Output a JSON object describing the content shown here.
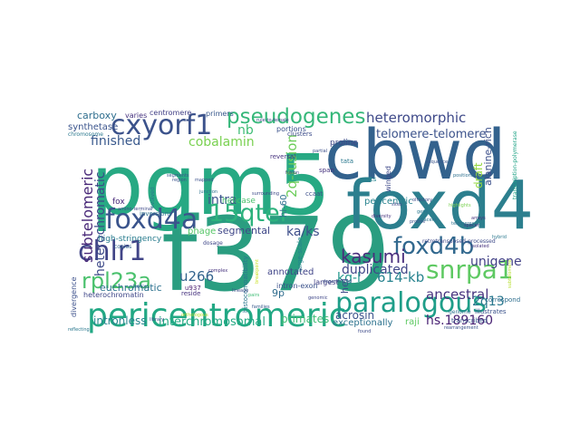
{
  "word_cloud": {
    "words": [
      {
        "text": "f379",
        "color": "#2a9d80"
      },
      {
        "text": "pgm5",
        "color": "#27a983"
      },
      {
        "text": "cbwd",
        "color": "#33628d"
      },
      {
        "text": "foxd4",
        "color": "#2c7f8e"
      },
      {
        "text": "pericentromeric",
        "color": "#22a884"
      },
      {
        "text": "paralogous",
        "color": "#1f9e89"
      },
      {
        "text": "foxd4a",
        "color": "#3a548c"
      },
      {
        "text": "cxyorf1",
        "color": "#3b528b"
      },
      {
        "text": "pseudogenes",
        "color": "#35b779"
      },
      {
        "text": "15qter",
        "color": "#2db27d"
      },
      {
        "text": "chlr1",
        "color": "#414487"
      },
      {
        "text": "foxd4b",
        "color": "#31688e"
      },
      {
        "text": "snrpa1",
        "color": "#5ec962"
      },
      {
        "text": "kasumi",
        "color": "#472d7b"
      },
      {
        "text": "rpl23a",
        "color": "#4ac16d"
      },
      {
        "text": "heteromorphic",
        "color": "#3e4989"
      },
      {
        "text": "telomere-telomere",
        "color": "#3b528b"
      },
      {
        "text": "unigene",
        "color": "#424186"
      },
      {
        "text": "duplicated",
        "color": "#404688"
      },
      {
        "text": "ancestral",
        "color": "#46327e"
      },
      {
        "text": "subtelomeric",
        "color": "#482878"
      },
      {
        "text": "heterochromatic",
        "color": "#3e4a89"
      },
      {
        "text": "finished",
        "color": "#38588c"
      },
      {
        "text": "cobalamin",
        "color": "#7ad151"
      },
      {
        "text": "intra",
        "color": "#3b528b"
      },
      {
        "text": "2q-fusion",
        "color": "#6ccd5a"
      },
      {
        "text": "ka/ks",
        "color": "#3d4e8a"
      },
      {
        "text": "kg-l",
        "color": "#1f968b"
      },
      {
        "text": "614-kb",
        "color": "#26828e"
      },
      {
        "text": "2q13",
        "color": "#2a788e"
      },
      {
        "text": "acrosin",
        "color": "#3b528b"
      },
      {
        "text": "hs.189160",
        "color": "#482173"
      },
      {
        "text": "raji",
        "color": "#5ec962"
      },
      {
        "text": "exceptionally",
        "color": "#2c728e"
      },
      {
        "text": "interchromosomal",
        "color": "#23a983"
      },
      {
        "text": "primates",
        "color": "#3dbc74"
      },
      {
        "text": "intronless",
        "color": "#25848e"
      },
      {
        "text": "segmental",
        "color": "#3f4788"
      },
      {
        "text": "euchromatic",
        "color": "#2c728e"
      },
      {
        "text": "u266",
        "color": "#33638d"
      },
      {
        "text": "phage",
        "color": "#56c667"
      },
      {
        "text": "draft",
        "color": "#95d840"
      },
      {
        "text": "alanine-rich",
        "color": "#3c4f8a"
      },
      {
        "text": "carboxy",
        "color": "#2e6e8e"
      },
      {
        "text": "synthetase",
        "color": "#3a548c"
      },
      {
        "text": "centromere",
        "color": "#424186"
      },
      {
        "text": "varies",
        "color": "#46337f"
      },
      {
        "text": "chromosome",
        "color": "#2a788e"
      },
      {
        "text": "high-stringency",
        "color": "#287c8e"
      },
      {
        "text": "fox",
        "color": "#482979"
      },
      {
        "text": "9p",
        "color": "#2f6c8e"
      },
      {
        "text": "annotated",
        "color": "#404588"
      },
      {
        "text": "heterochromatin",
        "color": "#3f4788"
      },
      {
        "text": "divergence",
        "color": "#3c508b"
      },
      {
        "text": "hl-60",
        "color": "#2e6f8e"
      },
      {
        "text": "pericentric",
        "color": "#26828e"
      },
      {
        "text": "helicase",
        "color": "#4ac16d"
      },
      {
        "text": "intron-exon",
        "color": "#3b528b"
      },
      {
        "text": "transcription-polymerase",
        "color": "#20a386"
      },
      {
        "text": "retrotransposed-processed",
        "color": "#3e4a89"
      },
      {
        "text": "histocompatibility",
        "color": "#2a778e"
      },
      {
        "text": "largest",
        "color": "#424186"
      },
      {
        "text": "hel",
        "color": "#3d4d8a"
      },
      {
        "text": "proline",
        "color": "#3f4788"
      },
      {
        "text": "winged",
        "color": "#3e4989"
      },
      {
        "text": "inversions",
        "color": "#2d708e"
      },
      {
        "text": "copies",
        "color": "#33638d"
      },
      {
        "text": "primers",
        "color": "#38588c"
      },
      {
        "text": "portions",
        "color": "#3b528b"
      },
      {
        "text": "clusters",
        "color": "#3d4d8a"
      },
      {
        "text": "span",
        "color": "#46327e"
      },
      {
        "text": "tata",
        "color": "#2a788e"
      },
      {
        "text": "units",
        "color": "#25848e"
      },
      {
        "text": "ccaat",
        "color": "#3c4f8a"
      },
      {
        "text": "dosage",
        "color": "#3f4788"
      },
      {
        "text": "evolved",
        "color": "#2b758e"
      },
      {
        "text": "amino-terminal",
        "color": "#3e4a89"
      },
      {
        "text": "helix",
        "color": "#31688e"
      },
      {
        "text": "u937",
        "color": "#481b6d"
      },
      {
        "text": "reside",
        "color": "#46327e"
      },
      {
        "text": "transcribed",
        "color": "#38588c"
      },
      {
        "text": "genome",
        "color": "#2c728e"
      },
      {
        "text": "illustrates",
        "color": "#3b528b"
      },
      {
        "text": "correspond",
        "color": "#2e6e8e"
      },
      {
        "text": "nb",
        "color": "#3dbc74"
      },
      {
        "text": "reversal",
        "color": "#46327e"
      },
      {
        "text": "large-scale",
        "color": "#26828e"
      },
      {
        "text": "surrounding",
        "color": "#3e4a89"
      },
      {
        "text": "rule-to-female",
        "color": "#3f4788"
      },
      {
        "text": "region",
        "color": "#3b528b"
      },
      {
        "text": "sequence",
        "color": "#3a548c"
      },
      {
        "text": "positions",
        "color": "#2d708e"
      },
      {
        "text": "diversity",
        "color": "#46327e"
      },
      {
        "text": "gene",
        "color": "#2a788e"
      },
      {
        "text": "highlights",
        "color": "#7ad151"
      },
      {
        "text": "rearrangement",
        "color": "#3b528b"
      },
      {
        "text": "found",
        "color": "#3e4a89"
      },
      {
        "text": "spacer",
        "color": "#46327e"
      },
      {
        "text": "junction",
        "color": "#2c728e"
      },
      {
        "text": "families",
        "color": "#38588c"
      },
      {
        "text": "lineage",
        "color": "#3c4f8a"
      },
      {
        "text": "pairs",
        "color": "#3dbc74"
      },
      {
        "text": "orthologous",
        "color": "#b5de2b"
      },
      {
        "text": "breakpoint",
        "color": "#c8e020"
      },
      {
        "text": "reflecting",
        "color": "#2a788e"
      },
      {
        "text": "library",
        "color": "#3b528b"
      },
      {
        "text": "arrays",
        "color": "#46327e"
      },
      {
        "text": "degenerated",
        "color": "#3c4f8a"
      },
      {
        "text": "genomic",
        "color": "#3f4788"
      },
      {
        "text": "adjacent",
        "color": "#2c728e"
      },
      {
        "text": "complex",
        "color": "#46327e"
      },
      {
        "text": "subtelomere",
        "color": "#b5de2b"
      },
      {
        "text": "olfactory",
        "color": "#3e4a89"
      },
      {
        "text": "mapped",
        "color": "#3b528b"
      },
      {
        "text": "segments",
        "color": "#38588c"
      },
      {
        "text": "hybrid",
        "color": "#2a788e"
      },
      {
        "text": "isolated",
        "color": "#46327e"
      },
      {
        "text": "telomeres",
        "color": "#2d708e"
      },
      {
        "text": "fusion",
        "color": "#3f4788"
      },
      {
        "text": "partial",
        "color": "#3c4f8a"
      },
      {
        "text": "probes",
        "color": "#3b528b"
      },
      {
        "text": "sites",
        "color": "#3e4a89"
      }
    ]
  }
}
